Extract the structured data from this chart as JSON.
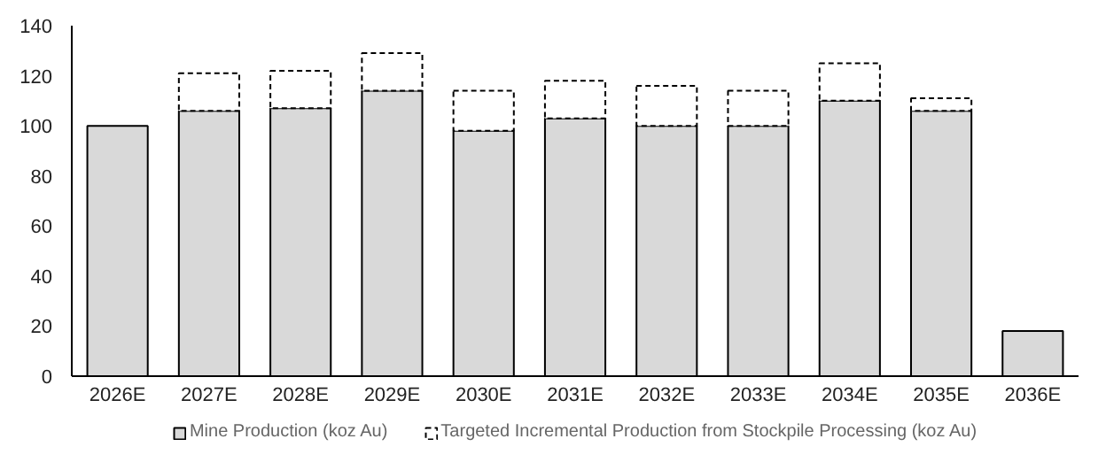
{
  "chart_data": {
    "type": "bar",
    "stacked": true,
    "categories": [
      "2026E",
      "2027E",
      "2028E",
      "2029E",
      "2030E",
      "2031E",
      "2032E",
      "2033E",
      "2034E",
      "2035E",
      "2036E"
    ],
    "series": [
      {
        "name": "Mine Production (koz Au)",
        "color": "#d9d9d9",
        "values": [
          100,
          106,
          107,
          114,
          98,
          103,
          100,
          100,
          110,
          106,
          18
        ]
      },
      {
        "name": "Targeted Incremental Production from Stockpile Processing (koz Au)",
        "color": "#ffffff",
        "line_style": "dashed",
        "values": [
          null,
          15,
          15,
          15,
          16,
          15,
          16,
          14,
          15,
          5,
          null
        ]
      }
    ],
    "ylim": [
      0,
      140
    ],
    "yticks": [
      0,
      20,
      40,
      60,
      80,
      100,
      120,
      140
    ],
    "grid": false,
    "legend": "bottom"
  }
}
